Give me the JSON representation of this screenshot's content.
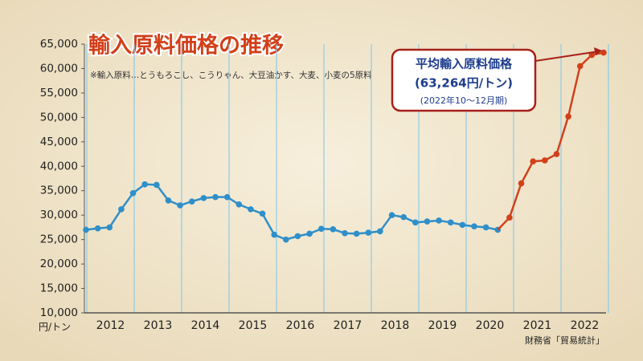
{
  "chart_data": {
    "type": "line",
    "title": "輸入原料価格の推移",
    "subtitle": "※輸入原料…とうもろこし、こうりゃん、大豆油かす、大麦、小麦の5原料",
    "y_unit": "円/トン",
    "source": "財務省「貿易統計」",
    "annotation": [
      "平均輸入原料価格",
      "(63,264円/トン)",
      "(2022年10～12月期)"
    ],
    "x_labels": [
      "2012",
      "2013",
      "2014",
      "2015",
      "2016",
      "2017",
      "2018",
      "2019",
      "2020",
      "2021",
      "2022"
    ],
    "ylim": [
      10000,
      65000
    ],
    "yticks": [
      {
        "value": 10000,
        "label": "10,000"
      },
      {
        "value": 15000,
        "label": "15,000"
      },
      {
        "value": 20000,
        "label": "20,000"
      },
      {
        "value": 25000,
        "label": "25,000"
      },
      {
        "value": 30000,
        "label": "30,000"
      },
      {
        "value": 35000,
        "label": "35,000"
      },
      {
        "value": 40000,
        "label": "40,000"
      },
      {
        "value": 45000,
        "label": "45,000"
      },
      {
        "value": 50000,
        "label": "50,000"
      },
      {
        "value": 55000,
        "label": "55,000"
      },
      {
        "value": 60000,
        "label": "60,000"
      },
      {
        "value": 65000,
        "label": "65,000"
      }
    ],
    "series": [
      {
        "color": "#2f8fc9",
        "values": [
          27000,
          27300,
          27500,
          31200,
          34500,
          36300,
          36200,
          33000,
          32000,
          32800,
          33500,
          33700,
          33700,
          32200,
          31200,
          30300,
          26000,
          25000,
          25700,
          26200,
          27200,
          27100,
          26300,
          26200,
          26400,
          26700,
          30000,
          29600,
          28500,
          28700,
          28900,
          28500,
          28000,
          27700,
          27500,
          27000,
          null,
          null,
          null,
          null,
          null,
          null,
          null,
          null,
          null
        ]
      },
      {
        "color": "#d2401a",
        "values": [
          null,
          null,
          null,
          null,
          null,
          null,
          null,
          null,
          null,
          null,
          null,
          null,
          null,
          null,
          null,
          null,
          null,
          null,
          null,
          null,
          null,
          null,
          null,
          null,
          null,
          null,
          null,
          null,
          null,
          null,
          null,
          null,
          null,
          null,
          null,
          27000,
          29500,
          36500,
          41000,
          41200,
          42500,
          50200,
          60500,
          62800,
          63264
        ]
      }
    ]
  }
}
